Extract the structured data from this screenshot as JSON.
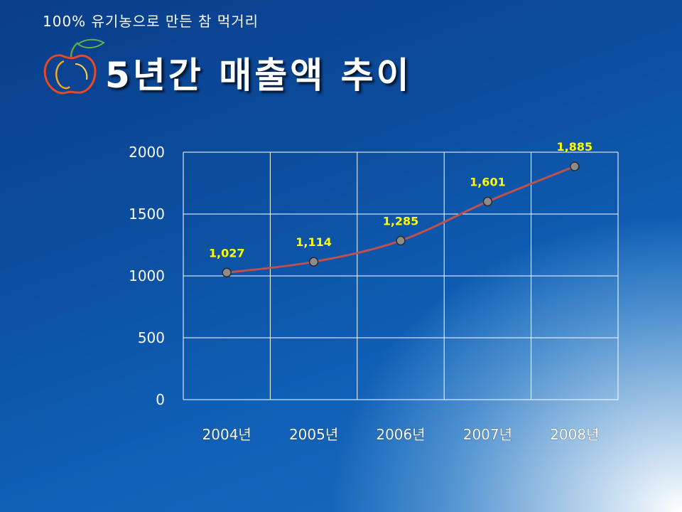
{
  "header": {
    "subtitle": "100% 유기농으로 만든 참 먹거리",
    "title": "5년간 매출액 추이"
  },
  "colors": {
    "line": "#c0504d",
    "grid": "#ffffff",
    "data_label": "#ffff00",
    "marker_fill": "#8c8c8c"
  },
  "icons": {
    "logo": "apple-icon"
  },
  "chart_data": {
    "type": "line",
    "categories": [
      "2004년",
      "2005년",
      "2006년",
      "2007년",
      "2008년"
    ],
    "values": [
      1027,
      1114,
      1285,
      1601,
      1885
    ],
    "data_labels": [
      "1,027",
      "1,114",
      "1,285",
      "1,601",
      "1,885"
    ],
    "ylim": [
      0,
      2000
    ],
    "yticks": [
      0,
      500,
      1000,
      1500,
      2000
    ],
    "grid": true,
    "legend": "none",
    "smooth": true
  }
}
